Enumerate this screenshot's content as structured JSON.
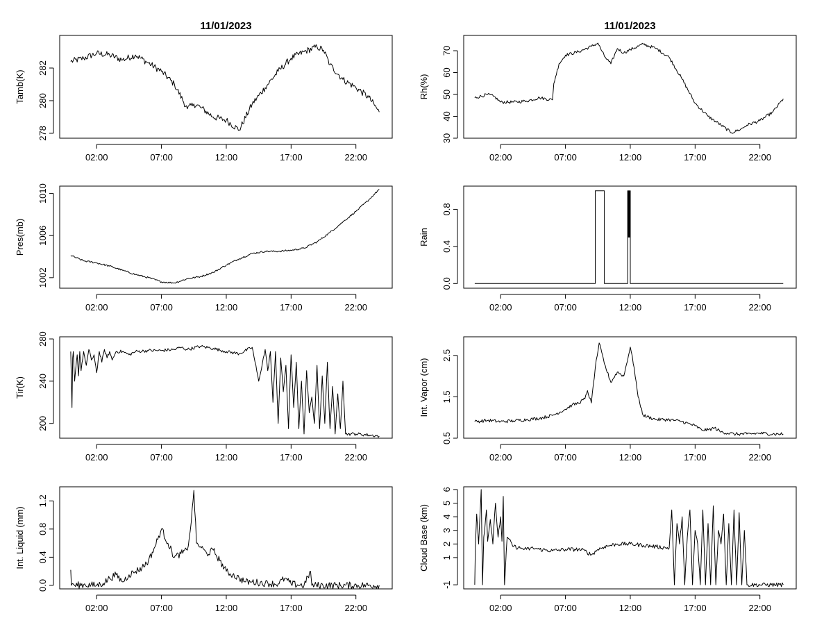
{
  "chart_data": [
    {
      "id": "tamb",
      "type": "line",
      "title": "11/01/2023",
      "ylabel": "Tamb(K)",
      "xlabel": "",
      "x_ticks": [
        "02:00",
        "07:00",
        "12:00",
        "17:00",
        "22:00"
      ],
      "ylim": [
        277.7,
        284.0
      ],
      "y_ticks": [
        278,
        280,
        282
      ],
      "y_tick_labels": [
        "278",
        "280",
        "282"
      ],
      "series": [
        {
          "name": "Tamb",
          "x": [
            0.0,
            1,
            2,
            3,
            4,
            5,
            6,
            7,
            8,
            9,
            9.5,
            10,
            11,
            12,
            13,
            14,
            15,
            16,
            17,
            18,
            19,
            19.5,
            20,
            21,
            22,
            23,
            23.8
          ],
          "y": [
            282.4,
            282.6,
            282.9,
            282.8,
            282.5,
            282.8,
            282.3,
            281.8,
            281.0,
            279.5,
            279.8,
            279.6,
            279.0,
            278.8,
            278.2,
            279.8,
            280.8,
            281.8,
            282.6,
            283.0,
            283.3,
            283.1,
            282.2,
            281.3,
            280.8,
            280.2,
            279.3
          ]
        }
      ],
      "noise": 0.2
    },
    {
      "id": "rh",
      "type": "line",
      "title": "11/01/2023",
      "ylabel": "Rh(%)",
      "xlabel": "",
      "x_ticks": [
        "02:00",
        "07:00",
        "12:00",
        "17:00",
        "22:00"
      ],
      "ylim": [
        30,
        77
      ],
      "y_ticks": [
        30,
        40,
        50,
        60,
        70
      ],
      "y_tick_labels": [
        "30",
        "40",
        "50",
        "60",
        "70"
      ],
      "series": [
        {
          "name": "Rh",
          "x": [
            0,
            1,
            1.5,
            2,
            3,
            4,
            5,
            6,
            6.1,
            6.5,
            7,
            8,
            9,
            9.5,
            10,
            10.5,
            11,
            11.5,
            12,
            13,
            14,
            15,
            16,
            17,
            18,
            19,
            19.8,
            20.5,
            21,
            22,
            23,
            23.8
          ],
          "y": [
            48.5,
            50.0,
            49.0,
            46.5,
            46.5,
            47.0,
            48.5,
            47.5,
            55.0,
            64.0,
            68.0,
            69.5,
            72.0,
            73.5,
            67.5,
            64.0,
            71.0,
            69.0,
            70.5,
            73.0,
            71.0,
            67.0,
            57.0,
            46.0,
            40.0,
            36.0,
            32.5,
            34.0,
            36.0,
            38.0,
            42.0,
            48.0
          ]
        }
      ],
      "noise": 0.7
    },
    {
      "id": "pres",
      "type": "line",
      "title": "",
      "ylabel": "Pres(mb)",
      "xlabel": "",
      "x_ticks": [
        "02:00",
        "07:00",
        "12:00",
        "17:00",
        "22:00"
      ],
      "ylim": [
        1001.0,
        1010.7
      ],
      "y_ticks": [
        1002,
        1006,
        1010
      ],
      "y_tick_labels": [
        "1002",
        "1006",
        "1010"
      ],
      "series": [
        {
          "name": "Pres",
          "x": [
            0,
            1,
            2,
            3,
            4,
            5,
            6,
            7,
            8,
            9,
            10,
            11,
            12,
            13,
            14,
            15,
            16,
            17,
            18,
            19,
            20,
            21,
            22,
            23,
            23.8
          ],
          "y": [
            1004.1,
            1003.6,
            1003.4,
            1003.1,
            1002.7,
            1002.3,
            1002.0,
            1001.6,
            1001.5,
            1001.9,
            1002.1,
            1002.5,
            1003.2,
            1003.8,
            1004.3,
            1004.5,
            1004.5,
            1004.6,
            1004.8,
            1005.4,
            1006.3,
            1007.3,
            1008.3,
            1009.4,
            1010.4
          ]
        }
      ],
      "noise": 0.08
    },
    {
      "id": "rain",
      "type": "line",
      "title": "",
      "ylabel": "Rain",
      "xlabel": "",
      "x_ticks": [
        "02:00",
        "07:00",
        "12:00",
        "17:00",
        "22:00"
      ],
      "ylim": [
        -0.05,
        1.05
      ],
      "y_ticks": [
        0.0,
        0.4,
        0.8
      ],
      "y_tick_labels": [
        "0.0",
        "0.4",
        "0.8"
      ],
      "series": [
        {
          "name": "Rain",
          "x": [
            0,
            9.3,
            9.3,
            10.0,
            10.0,
            11.8,
            11.8,
            11.82,
            11.84,
            11.86,
            11.88,
            11.9,
            11.92,
            11.94,
            11.96,
            11.98,
            12.0,
            12.0,
            23.8
          ],
          "y": [
            0,
            0,
            1,
            1,
            0,
            0,
            1,
            0.5,
            1,
            0.5,
            1,
            0.5,
            1,
            0.5,
            1,
            0.5,
            1,
            0,
            0
          ]
        }
      ],
      "noise": 0
    },
    {
      "id": "tir",
      "type": "line",
      "title": "",
      "ylabel": "Tir(K)",
      "xlabel": "",
      "x_ticks": [
        "02:00",
        "07:00",
        "12:00",
        "17:00",
        "22:00"
      ],
      "ylim": [
        186,
        282
      ],
      "y_ticks": [
        200,
        240,
        280
      ],
      "y_tick_labels": [
        "200",
        "240",
        "280"
      ],
      "series": [
        {
          "name": "Tir",
          "x": [
            0,
            0.1,
            0.15,
            0.2,
            0.3,
            0.5,
            0.6,
            0.7,
            0.8,
            1,
            1.2,
            1.4,
            1.6,
            1.8,
            2,
            2.2,
            2.4,
            2.6,
            2.8,
            3,
            3.2,
            3.5,
            4,
            4.5,
            5,
            6,
            7,
            8,
            8.5,
            9,
            10,
            11,
            12,
            13,
            14,
            14.5,
            15,
            15.2,
            15.4,
            15.6,
            15.8,
            16,
            16.2,
            16.4,
            16.6,
            16.8,
            17,
            17.2,
            17.4,
            17.6,
            17.8,
            18,
            18.2,
            18.4,
            18.6,
            18.8,
            19,
            19.2,
            19.4,
            19.6,
            19.8,
            20,
            20.2,
            20.4,
            20.6,
            20.8,
            21,
            21.2,
            21.4,
            21.6,
            22,
            23,
            23.8
          ],
          "y": [
            268,
            215,
            262,
            268,
            240,
            265,
            245,
            268,
            250,
            268,
            255,
            270,
            260,
            265,
            248,
            268,
            258,
            270,
            262,
            268,
            260,
            268,
            268,
            265,
            268,
            269,
            269,
            270,
            272,
            270,
            273,
            271,
            268,
            266,
            272,
            240,
            270,
            250,
            268,
            220,
            268,
            200,
            262,
            230,
            255,
            195,
            265,
            215,
            258,
            195,
            240,
            190,
            250,
            210,
            225,
            200,
            255,
            195,
            245,
            200,
            258,
            195,
            235,
            190,
            228,
            195,
            240,
            190,
            190,
            190,
            190,
            189,
            188
          ]
        }
      ],
      "noise": 1.5
    },
    {
      "id": "vapor",
      "type": "line",
      "title": "",
      "ylabel": "Int. Vapor (cm)",
      "xlabel": "",
      "x_ticks": [
        "02:00",
        "07:00",
        "12:00",
        "17:00",
        "22:00"
      ],
      "ylim": [
        0.5,
        2.95
      ],
      "y_ticks": [
        0.5,
        1.5,
        2.5
      ],
      "y_tick_labels": [
        "0.5",
        "1.5",
        "2.5"
      ],
      "series": [
        {
          "name": "Vapor",
          "x": [
            0,
            1,
            2,
            3,
            4,
            5,
            6,
            7,
            7.5,
            8,
            8.5,
            8.7,
            9,
            9.3,
            9.6,
            10,
            10.5,
            11,
            11.5,
            12,
            12.3,
            12.6,
            13,
            14,
            15,
            16,
            17,
            17.5,
            18,
            18.5,
            19,
            20,
            21,
            22,
            23,
            23.8
          ],
          "y": [
            0.9,
            0.93,
            0.9,
            0.92,
            0.95,
            0.98,
            1.05,
            1.2,
            1.3,
            1.35,
            1.45,
            1.65,
            1.35,
            2.2,
            2.8,
            2.3,
            1.85,
            2.1,
            2.0,
            2.7,
            2.2,
            1.5,
            1.05,
            0.95,
            0.95,
            0.9,
            0.8,
            0.7,
            0.7,
            0.75,
            0.65,
            0.6,
            0.6,
            0.62,
            0.6,
            0.6
          ]
        }
      ],
      "noise": 0.04
    },
    {
      "id": "liquid",
      "type": "line",
      "title": "",
      "ylabel": "Int. Liquid (mm)",
      "xlabel": "",
      "x_ticks": [
        "02:00",
        "07:00",
        "12:00",
        "17:00",
        "22:00"
      ],
      "ylim": [
        -0.05,
        1.4
      ],
      "y_ticks": [
        0.0,
        0.4,
        0.8,
        1.2
      ],
      "y_tick_labels": [
        "0.0",
        "0.4",
        "0.8",
        "1.2"
      ],
      "series": [
        {
          "name": "Liquid",
          "x": [
            0,
            0.05,
            0.1,
            0.3,
            1,
            2,
            2.5,
            3,
            3.5,
            4,
            4.5,
            5,
            5.5,
            6,
            6.5,
            7,
            7.5,
            8,
            8.5,
            9,
            9.3,
            9.5,
            9.7,
            10,
            10.5,
            11,
            11.5,
            12,
            12.5,
            13,
            13.5,
            14,
            15,
            16,
            16.5,
            17,
            18,
            18.5,
            18.6,
            18.8,
            23.8
          ],
          "y": [
            0.22,
            0.0,
            0.02,
            0.0,
            0.01,
            0.0,
            0.03,
            0.1,
            0.15,
            0.05,
            0.15,
            0.2,
            0.25,
            0.35,
            0.55,
            0.8,
            0.6,
            0.4,
            0.45,
            0.5,
            0.9,
            1.35,
            0.6,
            0.55,
            0.45,
            0.5,
            0.35,
            0.2,
            0.15,
            0.1,
            0.05,
            0.05,
            0.03,
            0.02,
            0.1,
            0.02,
            0.0,
            0.2,
            0.0,
            0.0,
            0.0
          ]
        }
      ],
      "noise": 0.05
    },
    {
      "id": "cloud",
      "type": "line",
      "title": "",
      "ylabel": "Cloud Base (km)",
      "xlabel": "",
      "x_ticks": [
        "02:00",
        "07:00",
        "12:00",
        "17:00",
        "22:00"
      ],
      "ylim": [
        -1.3,
        6.2
      ],
      "y_ticks": [
        -1,
        1,
        2,
        3,
        4,
        5,
        6
      ],
      "y_tick_labels": [
        "-1",
        "1",
        "2",
        "3",
        "4",
        "5",
        "6"
      ],
      "series": [
        {
          "name": "CloudBase",
          "x": [
            0,
            0.05,
            0.15,
            0.3,
            0.5,
            0.6,
            0.7,
            0.9,
            1,
            1.2,
            1.4,
            1.6,
            1.8,
            2,
            2.1,
            2.2,
            2.3,
            2.5,
            3,
            3.5,
            4,
            4.5,
            5,
            6,
            7,
            8,
            8.5,
            9,
            9.5,
            10,
            10.5,
            11,
            12,
            13,
            14,
            15,
            15.2,
            15.4,
            15.6,
            15.8,
            16,
            16.2,
            16.4,
            16.6,
            16.8,
            17,
            17.2,
            17.4,
            17.6,
            17.8,
            18,
            18.2,
            18.4,
            18.6,
            18.8,
            19,
            19.2,
            19.4,
            19.6,
            19.8,
            20,
            20.2,
            20.4,
            20.6,
            20.8,
            21,
            23.8
          ],
          "y": [
            -1,
            1.8,
            4.2,
            2.0,
            6.0,
            -1,
            2.5,
            4.5,
            2.2,
            3.8,
            2.0,
            5.0,
            2.5,
            4.0,
            2.2,
            5.5,
            -1,
            2.5,
            1.8,
            1.7,
            1.6,
            1.7,
            1.6,
            1.5,
            1.6,
            1.6,
            1.5,
            1.2,
            1.6,
            1.8,
            1.9,
            2.0,
            2.0,
            1.9,
            1.8,
            1.7,
            4.5,
            -1,
            3.5,
            2.0,
            4.0,
            -1,
            2.5,
            4.5,
            -1,
            3.0,
            2.0,
            -1,
            4.5,
            -1,
            3.5,
            -1,
            4.8,
            -1,
            3.0,
            2.0,
            4.2,
            -1,
            3.5,
            -1,
            4.5,
            -1,
            4.3,
            -1,
            3.0,
            -1,
            -1
          ]
        }
      ],
      "noise": 0.15
    }
  ]
}
